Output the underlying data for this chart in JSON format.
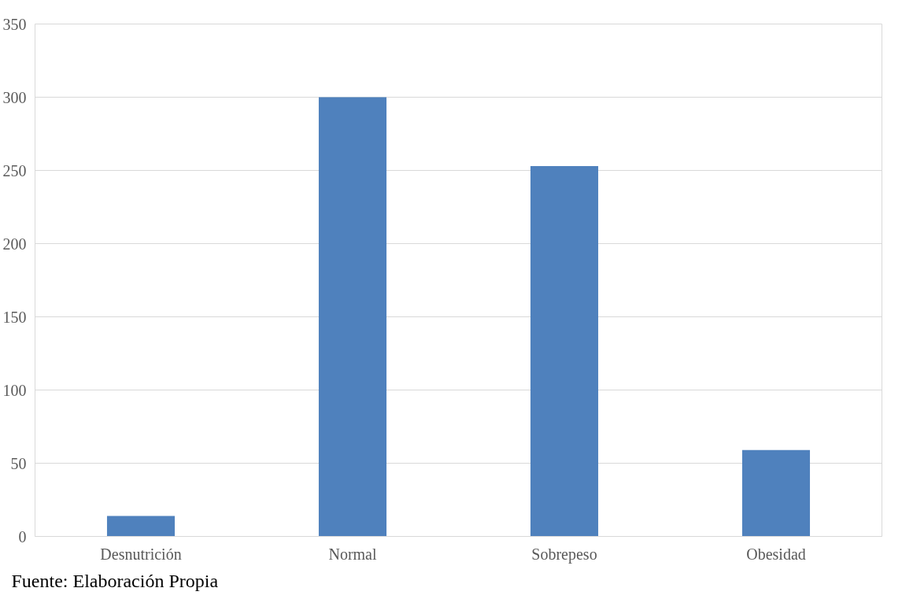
{
  "chart_data": {
    "type": "bar",
    "categories": [
      "Desnutrición",
      "Normal",
      "Sobrepeso",
      "Obesidad"
    ],
    "series": [
      {
        "color": "#4f81bd",
        "values": [
          14,
          300,
          253,
          59
        ]
      }
    ],
    "ylim": [
      0,
      350
    ],
    "yticks": [
      0,
      50,
      100,
      150,
      200,
      250,
      300,
      350
    ],
    "grid": "y",
    "annotations": [
      "Fuente: Elaboración Propia"
    ]
  }
}
